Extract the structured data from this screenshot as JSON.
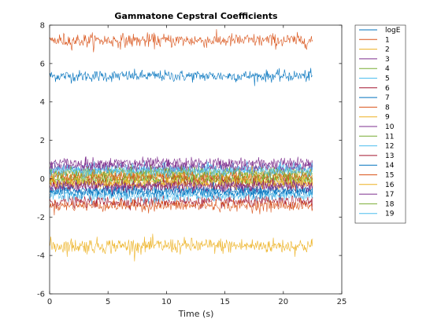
{
  "chart_data": {
    "type": "line",
    "title": "Gammatone Cepstral Coefficients",
    "xlabel": "Time (s)",
    "ylabel": "",
    "xlim": [
      0,
      25
    ],
    "ylim": [
      -6,
      8
    ],
    "x_ticks": [
      "0",
      "5",
      "10",
      "15",
      "20",
      "25"
    ],
    "y_ticks": [
      "-6",
      "-4",
      "-2",
      "0",
      "2",
      "4",
      "6",
      "8"
    ],
    "x_range": [
      0,
      22.5
    ],
    "grid": false,
    "legend_position": "outside-right",
    "series": [
      {
        "name": "logE",
        "mean": 5.35,
        "noise": 0.15,
        "color": "#0072BD"
      },
      {
        "name": "1",
        "mean": 7.2,
        "noise": 0.18,
        "color": "#D95319"
      },
      {
        "name": "2",
        "mean": -3.5,
        "noise": 0.2,
        "color": "#EDB120"
      },
      {
        "name": "3",
        "mean": 0.8,
        "noise": 0.15,
        "color": "#7E2F8E"
      },
      {
        "name": "4",
        "mean": -0.1,
        "noise": 0.15,
        "color": "#77AC30"
      },
      {
        "name": "5",
        "mean": 0.5,
        "noise": 0.15,
        "color": "#4DBEEE"
      },
      {
        "name": "6",
        "mean": -1.2,
        "noise": 0.15,
        "color": "#A2142F"
      },
      {
        "name": "7",
        "mean": -0.6,
        "noise": 0.15,
        "color": "#0072BD"
      },
      {
        "name": "8",
        "mean": -1.4,
        "noise": 0.15,
        "color": "#D95319"
      },
      {
        "name": "9",
        "mean": 0.2,
        "noise": 0.15,
        "color": "#EDB120"
      },
      {
        "name": "10",
        "mean": 0.6,
        "noise": 0.15,
        "color": "#7E2F8E"
      },
      {
        "name": "11",
        "mean": 0.0,
        "noise": 0.15,
        "color": "#77AC30"
      },
      {
        "name": "12",
        "mean": -0.9,
        "noise": 0.15,
        "color": "#4DBEEE"
      },
      {
        "name": "13",
        "mean": -0.3,
        "noise": 0.15,
        "color": "#A2142F"
      },
      {
        "name": "14",
        "mean": -0.7,
        "noise": 0.15,
        "color": "#0072BD"
      },
      {
        "name": "15",
        "mean": 0.1,
        "noise": 0.15,
        "color": "#D95319"
      },
      {
        "name": "16",
        "mean": -0.2,
        "noise": 0.15,
        "color": "#EDB120"
      },
      {
        "name": "17",
        "mean": -0.4,
        "noise": 0.15,
        "color": "#7E2F8E"
      },
      {
        "name": "18",
        "mean": 0.3,
        "noise": 0.15,
        "color": "#77AC30"
      },
      {
        "name": "19",
        "mean": 0.4,
        "noise": 0.15,
        "color": "#4DBEEE"
      }
    ]
  }
}
